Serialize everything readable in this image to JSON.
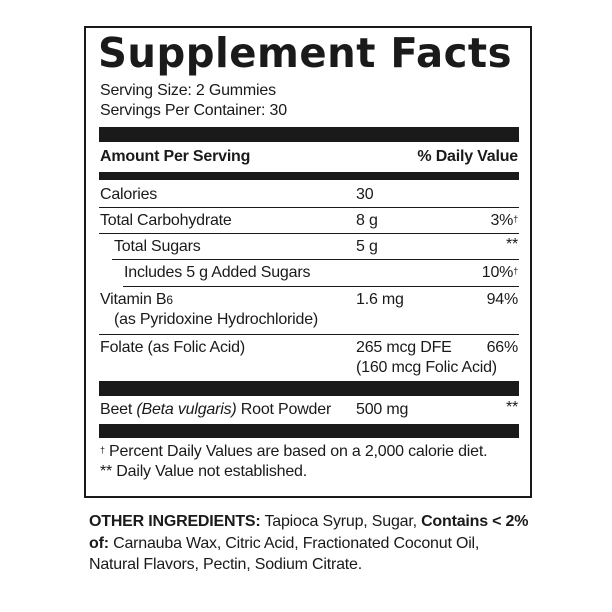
{
  "title": "Supplement Facts",
  "serving_size": "Serving Size: 2 Gummies",
  "servings_per_container": "Servings Per Container: 30",
  "header": {
    "amount": "Amount Per Serving",
    "dv": "% Daily Value"
  },
  "rows": [
    {
      "name": "Calories",
      "amount": "30",
      "dv": ""
    },
    {
      "name": "Total Carbohydrate",
      "amount": "8 g",
      "dv": "3%",
      "dv_mark": "†"
    },
    {
      "name": "Total Sugars",
      "amount": "5 g",
      "dv": "**"
    },
    {
      "name": "Includes 5 g Added Sugars",
      "amount": "",
      "dv": "10%",
      "dv_mark": "†"
    },
    {
      "name": "Vitamin B",
      "name_sub": "6",
      "name2": "(as Pyridoxine Hydrochloride)",
      "amount": "1.6 mg",
      "dv": "94%"
    },
    {
      "name": "Folate (as Folic Acid)",
      "amount": "265 mcg DFE",
      "amount2": "(160 mcg Folic Acid)",
      "dv": "66%"
    },
    {
      "name_pre": "Beet ",
      "name_italic": "(Beta vulgaris)",
      "name_post": " Root Powder",
      "amount": "500 mg",
      "dv": "**"
    }
  ],
  "footnotes": {
    "dagger": "†",
    "line1": " Percent Daily Values are based on a 2,000 calorie diet.",
    "line2": "** Daily Value not established."
  },
  "other_ingredients": {
    "label": "OTHER INGREDIENTS:",
    "text1": " Tapioca Syrup, Sugar, ",
    "contains": "Contains < 2% of:",
    "text2": " Carnauba Wax, Citric Acid, Fractionated Coconut Oil, Natural Flavors, Pectin, Sodium Citrate."
  }
}
